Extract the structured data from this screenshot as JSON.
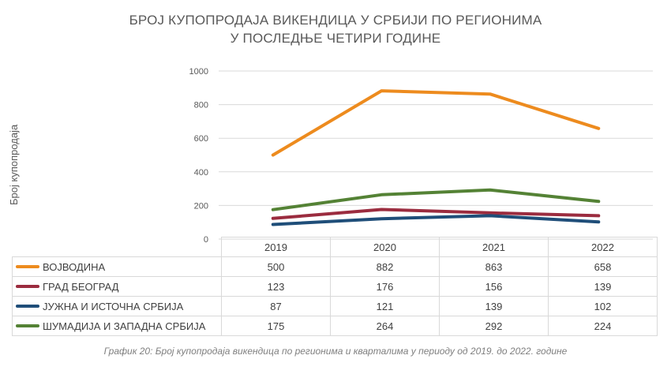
{
  "title_line1": "БРОЈ КУПОПРОДАЈА ВИКЕНДИЦА У СРБИЈИ ПО РЕГИОНИМА",
  "title_line2": "У ПОСЛЕДЊЕ ЧЕТИРИ ГОДИНЕ",
  "caption": "График 20: Број купопродаја викендица по регионима и кварталима у периоду од 2019. до 2022. године",
  "chart_data": {
    "type": "line",
    "title": "БРОЈ КУПОПРОДАЈА ВИКЕНДИЦА У СРБИЈИ ПО РЕГИОНИМА У ПОСЛЕДЊЕ ЧЕТИРИ ГОДИНЕ",
    "xlabel": "",
    "ylabel": "Број купопродаја",
    "categories": [
      "2019",
      "2020",
      "2021",
      "2022"
    ],
    "ylim": [
      0,
      1000
    ],
    "yticks": [
      "0",
      "200",
      "400",
      "600",
      "800",
      "1000"
    ],
    "grid": true,
    "legend": "data-table-below",
    "series": [
      {
        "name": "ВОЈВОДИНА",
        "values": [
          500,
          882,
          863,
          658
        ],
        "color": "#ED8B1E"
      },
      {
        "name": "ГРАД БЕОГРАД",
        "values": [
          123,
          176,
          156,
          139
        ],
        "color": "#9B2C3F"
      },
      {
        "name": "ЈУЖНА И ИСТОЧНА СРБИЈА",
        "values": [
          87,
          121,
          139,
          102
        ],
        "color": "#1F4E79"
      },
      {
        "name": "ШУМАДИЈА И ЗАПАДНА СРБИЈА",
        "values": [
          175,
          264,
          292,
          224
        ],
        "color": "#548235"
      }
    ]
  }
}
